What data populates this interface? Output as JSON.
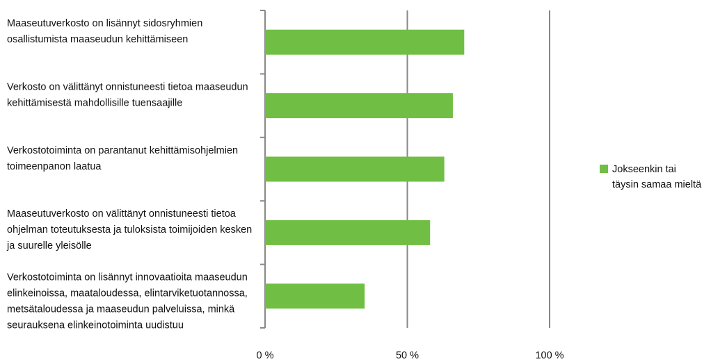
{
  "chart_data": {
    "type": "bar",
    "orientation": "horizontal",
    "categories": [
      "Maaseutuverkosto on lisännyt sidosryhmien osallistumista maaseudun kehittämiseen",
      "Verkosto on välittänyt onnistuneesti tietoa maaseudun kehittämisestä mahdollisille tuensaajille",
      "Verkostotoiminta on parantanut kehittämisohjelmien toimeenpanon laatua",
      "Maaseutuverkosto on välittänyt onnistuneesti tietoa ohjelman toteutuksesta ja tuloksista toimijoiden kesken ja suurelle yleisölle",
      "Verkostotoiminta on lisännyt innovaatioita maaseudun elinkeinoissa, maataloudessa, elintarviketuotannossa, metsätaloudessa ja maaseudun palveluissa, minkä seurauksena elinkeinotoiminta uudistuu"
    ],
    "series": [
      {
        "name": "Jokseenkin tai täysin samaa mieltä",
        "color": "#70bf44",
        "values": [
          70,
          66,
          63,
          58,
          35
        ]
      }
    ],
    "xlim": [
      0,
      100
    ],
    "xticks": [
      {
        "value": 0,
        "label": "0 %"
      },
      {
        "value": 50,
        "label": "50 %"
      },
      {
        "value": 100,
        "label": "100 %"
      }
    ],
    "grid": true,
    "legend": "right"
  }
}
